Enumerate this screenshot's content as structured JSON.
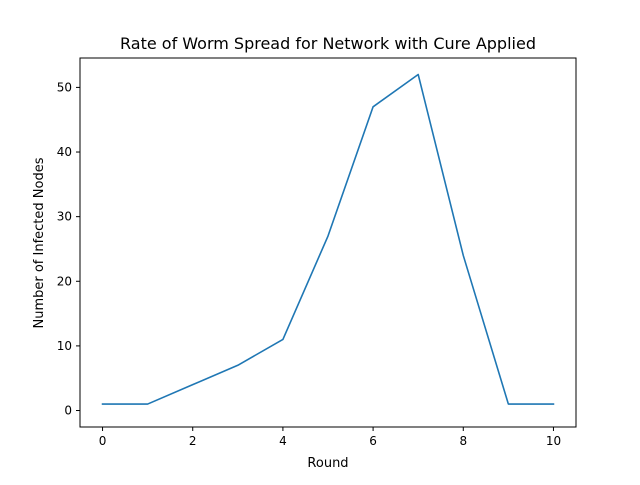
{
  "chart_data": {
    "type": "line",
    "title": "Rate of Worm Spread for Network with Cure Applied",
    "xlabel": "Round",
    "ylabel": "Number of Infected Nodes",
    "xlim": [
      -0.5,
      10.5
    ],
    "ylim": [
      -2.55,
      54.55
    ],
    "x_ticks": [
      0,
      2,
      4,
      6,
      8,
      10
    ],
    "y_ticks": [
      0,
      10,
      20,
      30,
      40,
      50
    ],
    "grid": false,
    "legend": "none",
    "series": [
      {
        "color": "#1f77b4",
        "x": [
          0,
          1,
          2,
          3,
          4,
          5,
          6,
          7,
          8,
          9,
          10
        ],
        "y": [
          1,
          1,
          4,
          7,
          11,
          27,
          47,
          52,
          24,
          1,
          1
        ]
      }
    ]
  }
}
